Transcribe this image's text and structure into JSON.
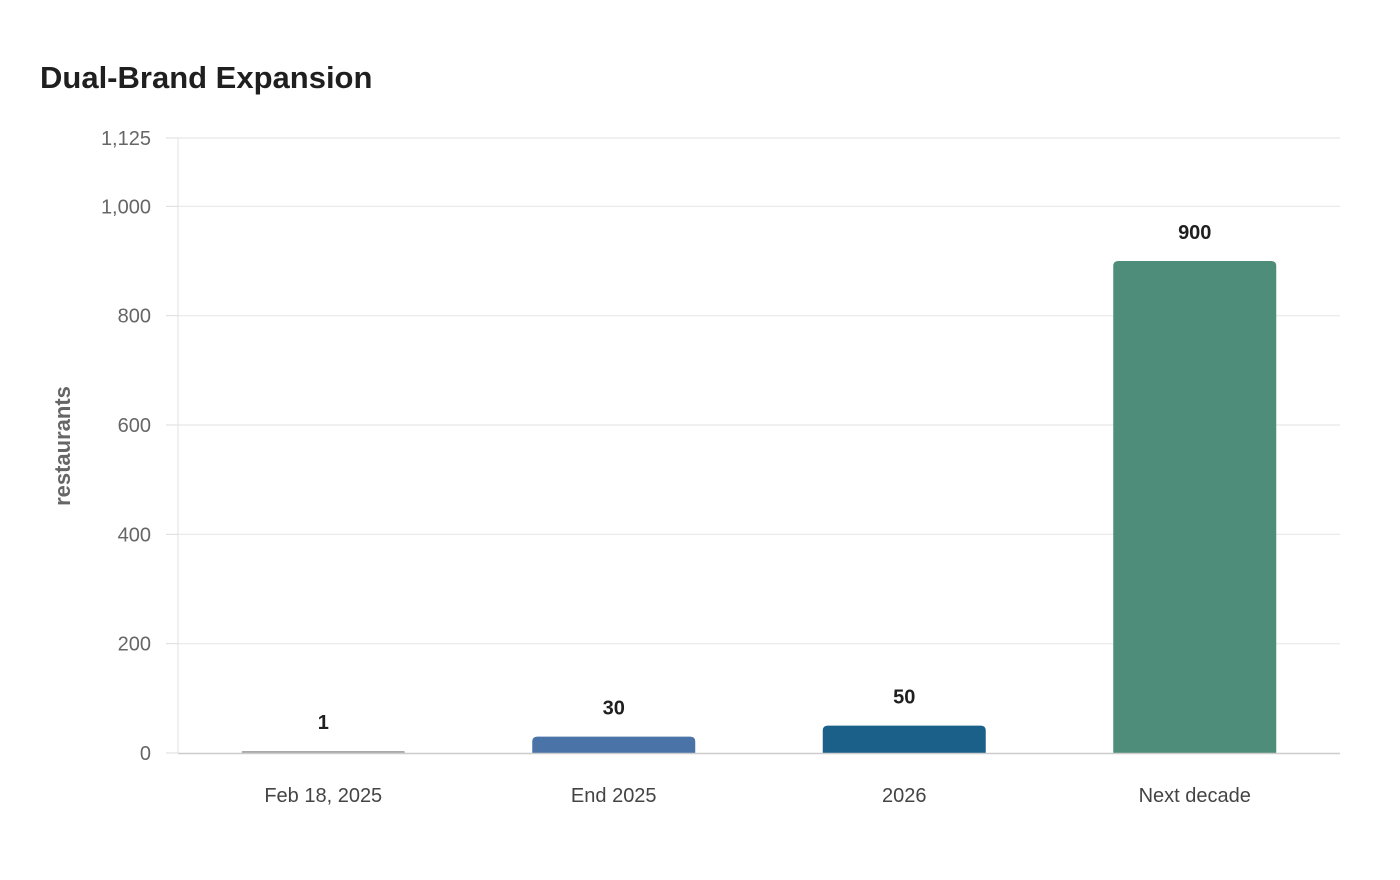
{
  "chart_data": {
    "type": "bar",
    "title": "Dual-Brand Expansion",
    "xlabel": "",
    "ylabel": "restaurants",
    "categories": [
      "Feb 18, 2025",
      "End 2025",
      "2026",
      "Next decade"
    ],
    "values": [
      1,
      30,
      50,
      900
    ],
    "data_labels": [
      "1",
      "30",
      "50",
      "900"
    ],
    "colors": [
      "#a9a9a9",
      "#4a73a8",
      "#1a6088",
      "#4e8d7a"
    ],
    "ylim": [
      0,
      1125
    ],
    "yticks": [
      0,
      200,
      400,
      600,
      800,
      1000,
      1125
    ],
    "ytick_labels": [
      "0",
      "200",
      "400",
      "600",
      "800",
      "1,000",
      "1,125"
    ],
    "grid": true,
    "legend": "none"
  }
}
